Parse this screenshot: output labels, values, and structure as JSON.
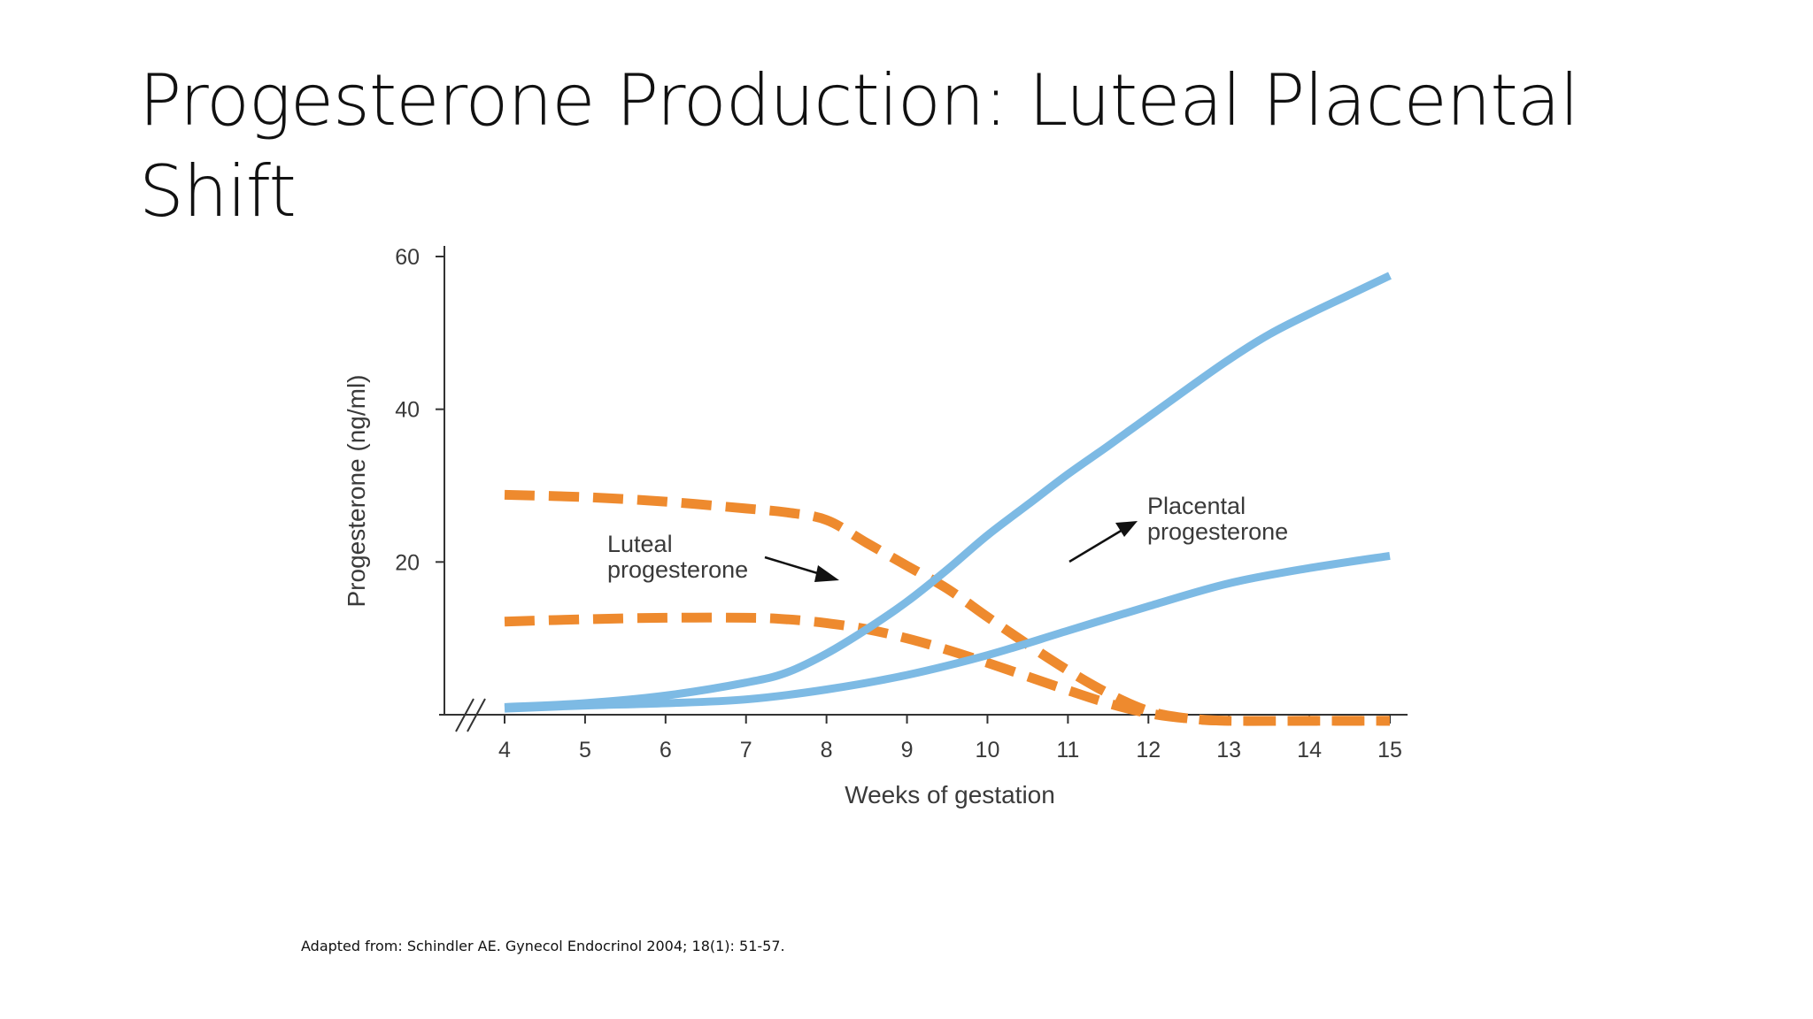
{
  "slide": {
    "title": "Progesterone Production: Luteal Placental Shift",
    "footnote": "Adapted from: Schindler AE. Gynecol Endocrinol  2004; 18(1): 51-57."
  },
  "colors": {
    "luteal": "#EE8A2E",
    "placental": "#7DBAE4",
    "axis": "#333333",
    "text": "#3a3a3a"
  },
  "chart_data": {
    "type": "line",
    "title": "",
    "xlabel": "Weeks of gestation",
    "ylabel": "Progesterone (ng/ml)",
    "xlim": [
      4,
      15
    ],
    "ylim": [
      0,
      60
    ],
    "x_ticks": [
      "4",
      "5",
      "6",
      "7",
      "8",
      "9",
      "10",
      "11",
      "12",
      "13",
      "14",
      "15"
    ],
    "y_ticks": [
      "20",
      "40",
      "60"
    ],
    "axis_break": true,
    "grid": false,
    "series": [
      {
        "group": "luteal",
        "style": "dashed",
        "x": [
          4,
          5,
          6,
          7,
          7.5,
          8,
          8.5,
          9,
          9.5,
          10,
          10.5,
          11,
          11.5,
          12,
          12.5,
          13,
          14,
          15
        ],
        "y": [
          28.8,
          28.5,
          27.9,
          27.0,
          26.5,
          25.5,
          22.5,
          19.5,
          16.5,
          12.8,
          9.2,
          5.8,
          2.8,
          0.5,
          -0.5,
          -0.8,
          -0.8,
          -0.8
        ]
      },
      {
        "group": "luteal",
        "style": "dashed",
        "x": [
          4,
          5,
          6,
          7,
          7.5,
          8,
          8.5,
          9,
          9.5,
          10,
          10.5,
          11,
          11.5,
          12,
          12.5,
          13,
          14,
          15
        ],
        "y": [
          12.2,
          12.5,
          12.7,
          12.7,
          12.5,
          12.0,
          11.2,
          10.0,
          8.5,
          6.8,
          5.0,
          3.2,
          1.5,
          0.2,
          -0.5,
          -0.8,
          -0.8,
          -0.8
        ]
      },
      {
        "group": "placental",
        "style": "solid",
        "x": [
          4,
          5,
          6,
          7,
          7.5,
          8,
          8.5,
          9,
          9.5,
          10,
          10.5,
          11,
          11.5,
          12,
          12.5,
          13,
          13.5,
          14,
          14.5,
          15
        ],
        "y": [
          1.0,
          1.5,
          2.5,
          4.2,
          5.5,
          8.0,
          11.2,
          14.8,
          19.0,
          23.5,
          27.5,
          31.5,
          35.2,
          39.0,
          42.8,
          46.5,
          49.8,
          52.5,
          55.0,
          57.5
        ]
      },
      {
        "group": "placental",
        "style": "solid",
        "x": [
          4,
          5,
          6,
          7,
          8,
          9,
          10,
          11,
          12,
          13,
          14,
          15
        ],
        "y": [
          0.8,
          1.2,
          1.5,
          2.0,
          3.3,
          5.2,
          7.8,
          11.0,
          14.2,
          17.2,
          19.2,
          20.8
        ]
      }
    ],
    "annotations": [
      {
        "id": "luteal",
        "lines": [
          "Luteal",
          "progesterone"
        ]
      },
      {
        "id": "placental",
        "lines": [
          "Placental",
          "progesterone"
        ]
      }
    ]
  }
}
